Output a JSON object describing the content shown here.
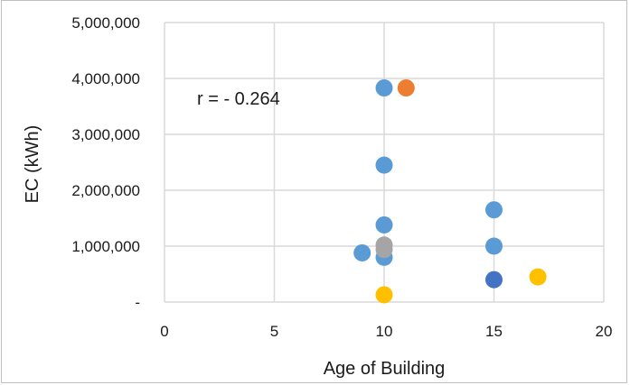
{
  "chart_data": {
    "type": "scatter",
    "title": "",
    "xlabel": "Age of Building",
    "ylabel": "EC (kWh)",
    "xlim": [
      0,
      20
    ],
    "ylim": [
      0,
      5000000
    ],
    "x_ticks": [
      "0",
      "5",
      "10",
      "15",
      "20"
    ],
    "y_ticks": [
      "-",
      "1,000,000",
      "2,000,000",
      "3,000,000",
      "4,000,000",
      "5,000,000"
    ],
    "grid": true,
    "annotation": "r = - 0.264",
    "points": [
      {
        "x": 10,
        "y": 3830000,
        "color": "#5b9bd5"
      },
      {
        "x": 11,
        "y": 3830000,
        "color": "#ed7d31"
      },
      {
        "x": 10,
        "y": 2450000,
        "color": "#5b9bd5"
      },
      {
        "x": 10,
        "y": 1380000,
        "color": "#5b9bd5"
      },
      {
        "x": 9,
        "y": 880000,
        "color": "#5b9bd5"
      },
      {
        "x": 10,
        "y": 800000,
        "color": "#5b9bd5"
      },
      {
        "x": 10,
        "y": 1020000,
        "color": "#a5a5a5"
      },
      {
        "x": 10,
        "y": 940000,
        "color": "#a5a5a5"
      },
      {
        "x": 10,
        "y": 130000,
        "color": "#ffc000"
      },
      {
        "x": 15,
        "y": 1650000,
        "color": "#5b9bd5"
      },
      {
        "x": 15,
        "y": 1000000,
        "color": "#5b9bd5"
      },
      {
        "x": 15,
        "y": 400000,
        "color": "#4472c4"
      },
      {
        "x": 17,
        "y": 450000,
        "color": "#ffc000"
      }
    ]
  }
}
